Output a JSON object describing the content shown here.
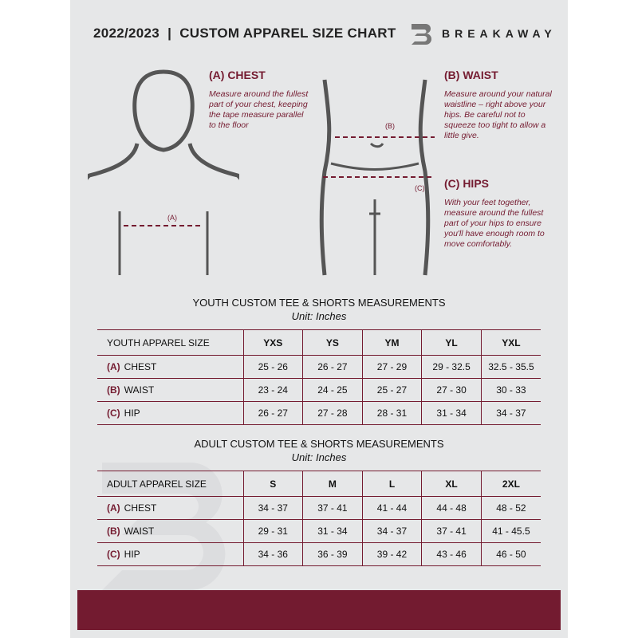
{
  "header": {
    "title": "2022/2023  |  CUSTOM APPAREL SIZE CHART",
    "brand": "BREAKAWAY"
  },
  "guide": {
    "chest": {
      "heading": "(A) CHEST",
      "text": "Measure around the fullest part of your chest, keeping the tape measure parallel to the floor",
      "marker": "(A)"
    },
    "waist": {
      "heading": "(B) WAIST",
      "text": "Measure around your natural waistline – right above your hips. Be careful not to squeeze too tight to allow a little give.",
      "marker": "(B)"
    },
    "hips": {
      "heading": "(C) HIPS",
      "text": "With your feet together, measure around the fullest part of your hips to ensure you'll have enough room to move comfortably.",
      "marker": "(C)"
    }
  },
  "youth": {
    "title": "YOUTH CUSTOM TEE & SHORTS MEASUREMENTS",
    "unit": "Unit: Inches",
    "size_label": "YOUTH APPAREL SIZE",
    "sizes": [
      "YXS",
      "YS",
      "YM",
      "YL",
      "YXL"
    ],
    "rows": [
      {
        "code": "(A)",
        "name": "CHEST",
        "values": [
          "25 - 26",
          "26 - 27",
          "27 - 29",
          "29 - 32.5",
          "32.5 - 35.5"
        ]
      },
      {
        "code": "(B)",
        "name": "WAIST",
        "values": [
          "23 - 24",
          "24 - 25",
          "25 - 27",
          "27 - 30",
          "30 - 33"
        ]
      },
      {
        "code": "(C)",
        "name": "HIP",
        "values": [
          "26 - 27",
          "27 - 28",
          "28 - 31",
          "31 - 34",
          "34 - 37"
        ]
      }
    ]
  },
  "adult": {
    "title": "ADULT CUSTOM TEE & SHORTS MEASUREMENTS",
    "unit": "Unit: Inches",
    "size_label": "ADULT APPAREL SIZE",
    "sizes": [
      "S",
      "M",
      "L",
      "XL",
      "2XL"
    ],
    "rows": [
      {
        "code": "(A)",
        "name": "CHEST",
        "values": [
          "34 - 37",
          "37 - 41",
          "41 - 44",
          "44 - 48",
          "48 - 52"
        ]
      },
      {
        "code": "(B)",
        "name": "WAIST",
        "values": [
          "29 - 31",
          "31 - 34",
          "34 - 37",
          "37 - 41",
          "41 - 45.5"
        ]
      },
      {
        "code": "(C)",
        "name": "HIP",
        "values": [
          "34 - 36",
          "36 - 39",
          "39 - 42",
          "43 - 46",
          "46 - 50"
        ]
      }
    ]
  },
  "colors": {
    "accent": "#741b30",
    "background": "#e6e7e8"
  }
}
